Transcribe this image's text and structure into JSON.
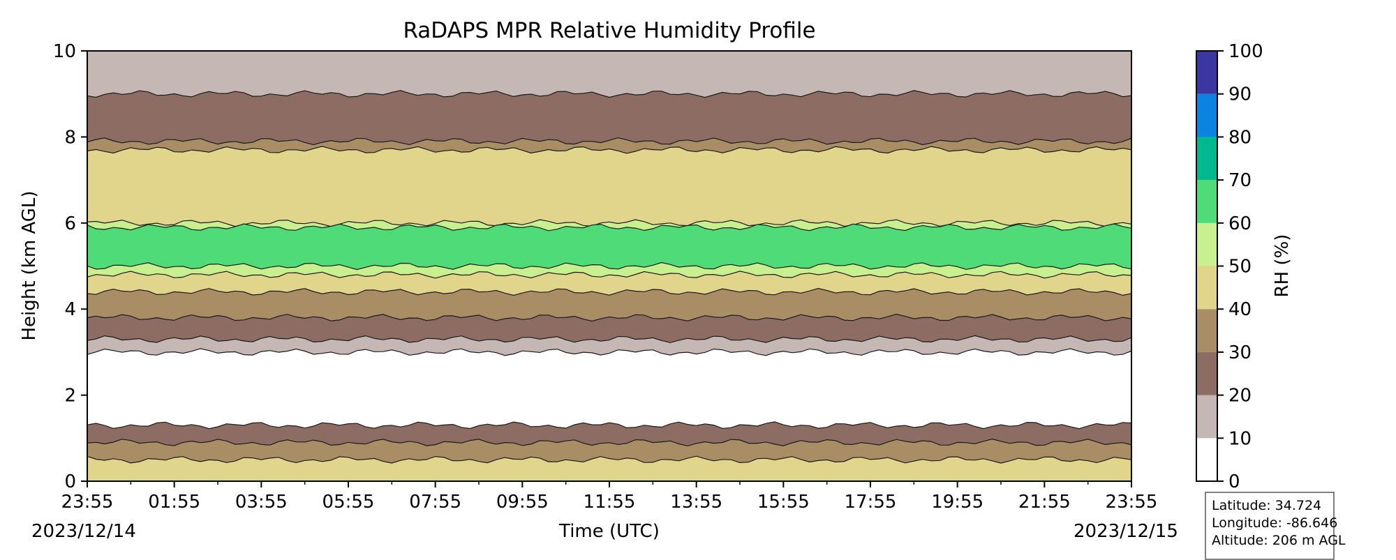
{
  "chart_data": {
    "type": "heatmap",
    "title": "RaDAPS MPR Relative Humidity Profile",
    "xlabel": "Time (UTC)",
    "ylabel": "Height (km AGL)",
    "x_tick_labels": [
      "23:55",
      "01:55",
      "03:55",
      "05:55",
      "07:55",
      "09:55",
      "11:55",
      "13:55",
      "15:55",
      "17:55",
      "19:55",
      "21:55",
      "23:55"
    ],
    "x_start_date": "2023/12/14",
    "x_end_date": "2023/12/15",
    "y_ticks": [
      0,
      2,
      4,
      6,
      8,
      10
    ],
    "ylim": [
      0,
      10
    ],
    "colorbar": {
      "label": "RH (%)",
      "ticks": [
        0,
        10,
        20,
        30,
        40,
        50,
        60,
        70,
        80,
        90,
        100
      ],
      "bins": [
        {
          "range": [
            0,
            10
          ],
          "color": "#ffffff"
        },
        {
          "range": [
            10,
            20
          ],
          "color": "#c5b7b4"
        },
        {
          "range": [
            20,
            30
          ],
          "color": "#8d6c64"
        },
        {
          "range": [
            30,
            40
          ],
          "color": "#a88d65"
        },
        {
          "range": [
            40,
            50
          ],
          "color": "#e1d58b"
        },
        {
          "range": [
            50,
            60
          ],
          "color": "#c9f08f"
        },
        {
          "range": [
            60,
            70
          ],
          "color": "#4fdb77"
        },
        {
          "range": [
            70,
            80
          ],
          "color": "#00b98e"
        },
        {
          "range": [
            80,
            90
          ],
          "color": "#0b83e2"
        },
        {
          "range": [
            90,
            100
          ],
          "color": "#3b36a0"
        }
      ]
    },
    "profile_layers": [
      {
        "rh_bin": "10-20",
        "bottom_km": 0.0,
        "top_km": 10.0
      },
      {
        "rh_bin": "0-10",
        "bottom_km": 1.2,
        "top_km": 3.0
      },
      {
        "rh_bin": "20-30",
        "bottom_km": 0.0,
        "top_km": 1.3
      },
      {
        "rh_bin": "30-40",
        "bottom_km": 0.0,
        "top_km": 0.9
      },
      {
        "rh_bin": "40-50",
        "bottom_km": 0.0,
        "top_km": 0.5
      },
      {
        "rh_bin": "20-30",
        "bottom_km": 3.3,
        "top_km": 9.0
      },
      {
        "rh_bin": "30-40",
        "bottom_km": 3.8,
        "top_km": 7.9
      },
      {
        "rh_bin": "40-50",
        "bottom_km": 4.4,
        "top_km": 7.7
      },
      {
        "rh_bin": "50-60",
        "bottom_km": 4.8,
        "top_km": 6.0
      },
      {
        "rh_bin": "60-70",
        "bottom_km": 5.0,
        "top_km": 5.9
      }
    ]
  },
  "info": {
    "latitude": "Latitude: 34.724",
    "longitude": "Longitude: -86.646",
    "altitude": "Altitude: 206 m AGL"
  }
}
